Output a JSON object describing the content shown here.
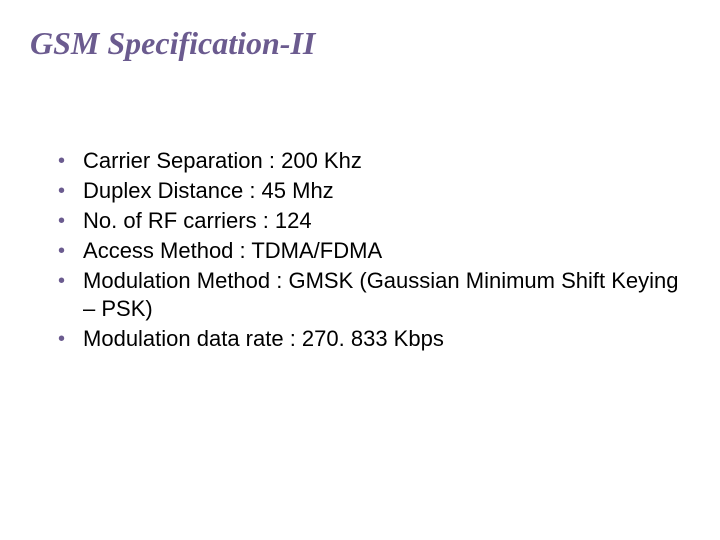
{
  "slide": {
    "title": "GSM Specification-II",
    "title_color": "#6b5b8f",
    "title_fontsize": 32,
    "title_fontfamily": "Times New Roman",
    "title_fontstyle": "italic",
    "title_fontweight": "bold",
    "bullet_color": "#6b5b8f",
    "text_color": "#000000",
    "text_fontsize": 22,
    "text_fontfamily": "Arial",
    "background_color": "#ffffff",
    "bullets": [
      {
        "text": "Carrier Separation   : 200 Khz"
      },
      {
        "text": "Duplex Distance       : 45 Mhz"
      },
      {
        "text": "No. of RF carriers   : 124"
      },
      {
        "text": "Access Method         : TDMA/FDMA"
      },
      {
        "text": "Modulation Method : GMSK (Gaussian Minimum Shift Keying – PSK)"
      },
      {
        "text": "Modulation data rate   : 270. 833 Kbps"
      }
    ]
  }
}
